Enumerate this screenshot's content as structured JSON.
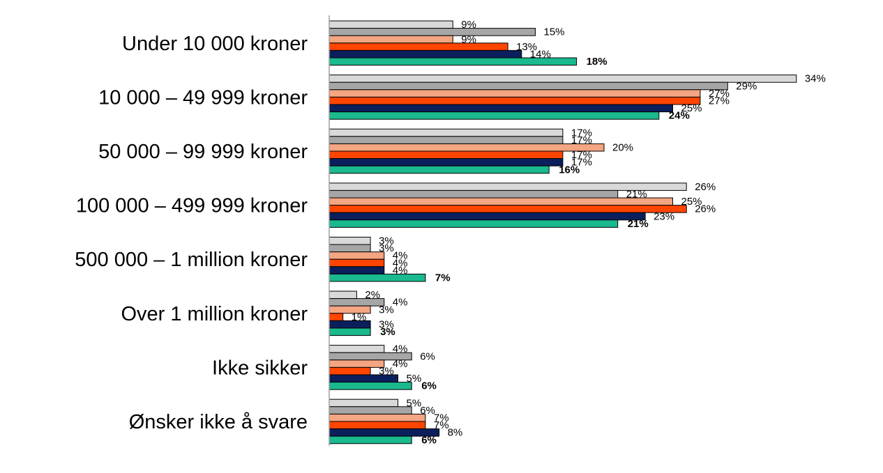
{
  "chart_data": {
    "type": "bar",
    "orientation": "horizontal",
    "title": "",
    "xlabel": "",
    "ylabel": "",
    "xlim": [
      0,
      34
    ],
    "grid": false,
    "legend": "none",
    "categories": [
      "Under 10 000 kroner",
      "10 000 – 49 999 kroner",
      "50 000 – 99 999 kroner",
      "100 000 – 499 999 kroner",
      "500 000 – 1 million kroner",
      "Over 1 million kroner",
      "Ikke sikker",
      "Ønsker ikke å svare"
    ],
    "series": [
      {
        "color": "#D9D9D9",
        "values": [
          9,
          34,
          17,
          26,
          3,
          2,
          4,
          5
        ],
        "labels": [
          "9%",
          "34%",
          "17%",
          "26%",
          "3%",
          "2%",
          "4%",
          "5%"
        ],
        "bold_labels": false
      },
      {
        "color": "#A6A6A6",
        "values": [
          15,
          29,
          17,
          21,
          3,
          4,
          6,
          6
        ],
        "labels": [
          "15%",
          "29%",
          "17%",
          "21%",
          "3%",
          "4%",
          "6%",
          "6%"
        ],
        "bold_labels": false
      },
      {
        "color": "#F4A582",
        "values": [
          9,
          27,
          20,
          25,
          4,
          3,
          4,
          7
        ],
        "labels": [
          "9%",
          "27%",
          "20%",
          "25%",
          "4%",
          "3%",
          "4%",
          "7%"
        ],
        "bold_labels": false
      },
      {
        "color": "#FF4500",
        "values": [
          13,
          27,
          17,
          26,
          4,
          1,
          3,
          7
        ],
        "labels": [
          "13%",
          "27%",
          "17%",
          "26%",
          "4%",
          "1%",
          "3%",
          "7%"
        ],
        "bold_labels": false
      },
      {
        "color": "#0B1F5C",
        "values": [
          14,
          25,
          17,
          23,
          4,
          3,
          5,
          8
        ],
        "labels": [
          "14%",
          "25%",
          "17%",
          "23%",
          "4%",
          "3%",
          "5%",
          "8%"
        ],
        "bold_labels": false
      },
      {
        "color": "#1AB98E",
        "values": [
          18,
          24,
          16,
          21,
          7,
          3,
          6,
          6
        ],
        "labels": [
          "18%",
          "24%",
          "16%",
          "21%",
          "7%",
          "3%",
          "6%",
          "6%"
        ],
        "bold_labels": true
      }
    ]
  }
}
